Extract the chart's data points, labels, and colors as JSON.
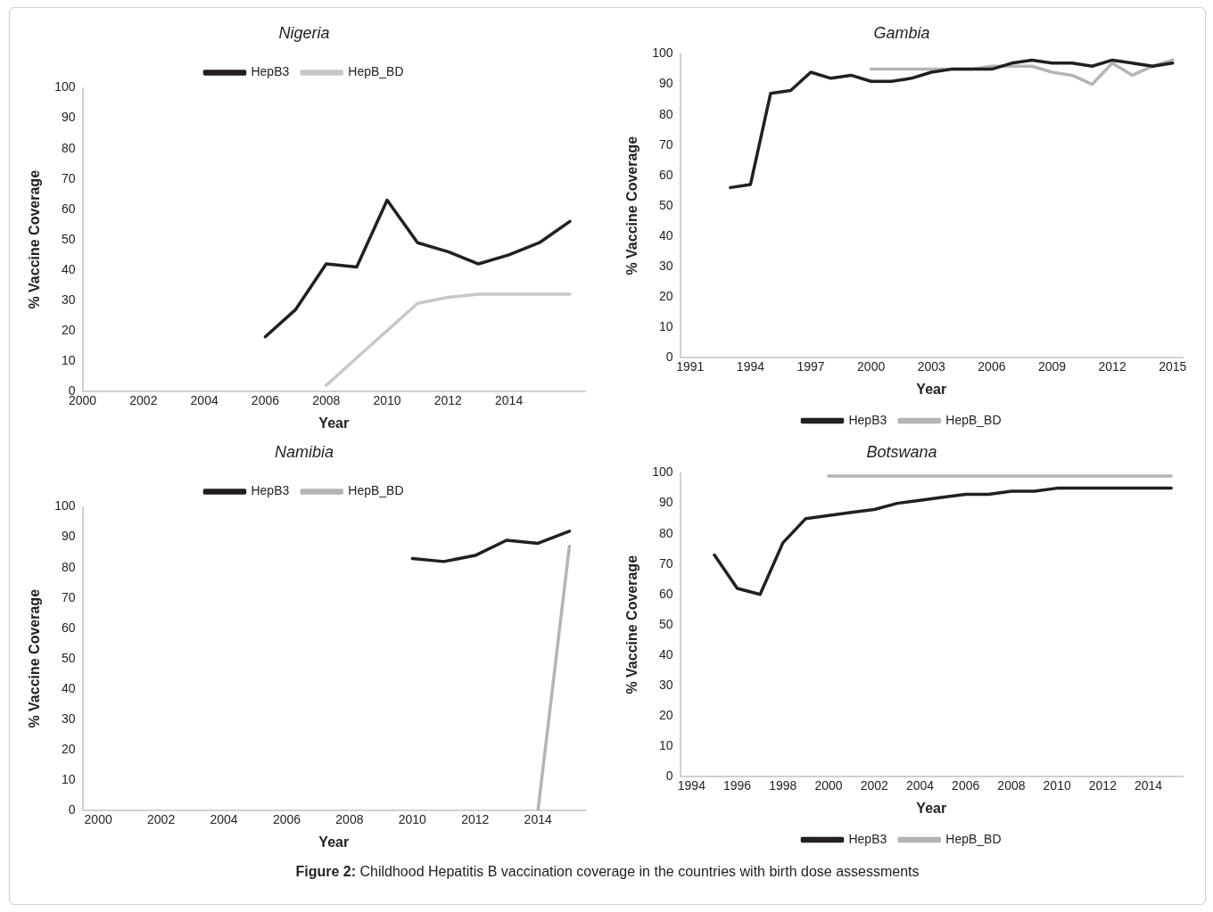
{
  "chart_data": [
    {
      "type": "line",
      "title": "Nigeria",
      "xlabel": "Year",
      "ylabel": "% Vaccine Coverage",
      "xlim": [
        2000,
        2016.5
      ],
      "xticks": [
        2000,
        2002,
        2004,
        2006,
        2008,
        2010,
        2012,
        2014
      ],
      "ylim": [
        0,
        100
      ],
      "yticks": [
        0,
        10,
        20,
        30,
        40,
        50,
        60,
        70,
        80,
        90,
        100
      ],
      "grid": false,
      "legend": "top",
      "marker": "none",
      "series": [
        {
          "name": "HepB3",
          "color": "#231f20",
          "x": [
            2006,
            2007,
            2008,
            2009,
            2010,
            2011,
            2012,
            2013,
            2014,
            2015,
            2016
          ],
          "values": [
            18,
            27,
            42,
            41,
            63,
            49,
            46,
            42,
            45,
            49,
            56
          ]
        },
        {
          "name": "HepB_BD",
          "color": "#c8c8c8",
          "x": [
            2008,
            2009,
            2010,
            2011,
            2012,
            2013,
            2014,
            2015,
            2016
          ],
          "values": [
            2,
            11,
            20,
            29,
            31,
            32,
            32,
            32,
            32
          ]
        }
      ]
    },
    {
      "type": "line",
      "title": "Gambia",
      "xlabel": "Year",
      "ylabel": "% Vaccine Coverage",
      "xlim": [
        1990.5,
        2015.5
      ],
      "xticks": [
        1991,
        1994,
        1997,
        2000,
        2003,
        2006,
        2009,
        2012,
        2015
      ],
      "ylim": [
        0,
        100
      ],
      "yticks": [
        0,
        10,
        20,
        30,
        40,
        50,
        60,
        70,
        80,
        90,
        100
      ],
      "grid": false,
      "legend": "bottom",
      "marker": "none",
      "series": [
        {
          "name": "HepB3",
          "color": "#231f20",
          "x": [
            1993,
            1994,
            1995,
            1996,
            1997,
            1998,
            1999,
            2000,
            2001,
            2002,
            2003,
            2004,
            2005,
            2006,
            2007,
            2008,
            2009,
            2010,
            2011,
            2012,
            2013,
            2014,
            2015
          ],
          "values": [
            56,
            57,
            87,
            88,
            94,
            92,
            93,
            91,
            91,
            92,
            94,
            95,
            95,
            95,
            97,
            98,
            97,
            97,
            96,
            98,
            97,
            96,
            97
          ]
        },
        {
          "name": "HepB_BD",
          "color": "#b4b4b4",
          "x": [
            2000,
            2001,
            2002,
            2003,
            2004,
            2005,
            2006,
            2007,
            2008,
            2009,
            2010,
            2011,
            2012,
            2013,
            2014,
            2015
          ],
          "values": [
            95,
            95,
            95,
            95,
            95,
            95,
            96,
            96,
            96,
            94,
            93,
            90,
            97,
            93,
            96,
            98
          ]
        }
      ]
    },
    {
      "type": "line",
      "title": "Namibia",
      "xlabel": "Year",
      "ylabel": "% Vaccine Coverage",
      "xlim": [
        1999.5,
        2015.5
      ],
      "xticks": [
        2000,
        2002,
        2004,
        2006,
        2008,
        2010,
        2012,
        2014
      ],
      "ylim": [
        0,
        100
      ],
      "yticks": [
        0,
        10,
        20,
        30,
        40,
        50,
        60,
        70,
        80,
        90,
        100
      ],
      "grid": false,
      "legend": "top",
      "marker": "none",
      "series": [
        {
          "name": "HepB3",
          "color": "#231f20",
          "x": [
            2010,
            2011,
            2012,
            2013,
            2014,
            2015
          ],
          "values": [
            83,
            82,
            84,
            89,
            88,
            92
          ]
        },
        {
          "name": "HepB_BD",
          "color": "#b4b4b4",
          "x": [
            2014,
            2015
          ],
          "values": [
            0,
            87
          ]
        }
      ]
    },
    {
      "type": "line",
      "title": "Botswana",
      "xlabel": "Year",
      "ylabel": "% Vaccine Coverage",
      "xlim": [
        1993.5,
        2015.5
      ],
      "xticks": [
        1994,
        1996,
        1998,
        2000,
        2002,
        2004,
        2006,
        2008,
        2010,
        2012,
        2014
      ],
      "ylim": [
        0,
        100
      ],
      "yticks": [
        0,
        10,
        20,
        30,
        40,
        50,
        60,
        70,
        80,
        90,
        100
      ],
      "grid": false,
      "legend": "bottom",
      "marker": "none",
      "annotations": [
        "Figure 2: Childhood Hepatitis B vaccination coverage in the countries with birth dose assessments"
      ],
      "series": [
        {
          "name": "HepB3",
          "color": "#231f20",
          "x": [
            1995,
            1996,
            1997,
            1998,
            1999,
            2000,
            2001,
            2002,
            2003,
            2004,
            2005,
            2006,
            2007,
            2008,
            2009,
            2010,
            2011,
            2012,
            2013,
            2014,
            2015
          ],
          "values": [
            73,
            62,
            60,
            77,
            85,
            86,
            87,
            88,
            90,
            91,
            92,
            93,
            93,
            94,
            94,
            95,
            95,
            95,
            95,
            95,
            95
          ]
        },
        {
          "name": "HepB_BD",
          "color": "#b4b4b4",
          "x": [
            2000,
            2001,
            2002,
            2003,
            2004,
            2005,
            2006,
            2007,
            2008,
            2009,
            2010,
            2011,
            2012,
            2013,
            2014,
            2015
          ],
          "values": [
            99,
            99,
            99,
            99,
            99,
            99,
            99,
            99,
            99,
            99,
            99,
            99,
            99,
            99,
            99,
            99
          ]
        }
      ]
    }
  ]
}
